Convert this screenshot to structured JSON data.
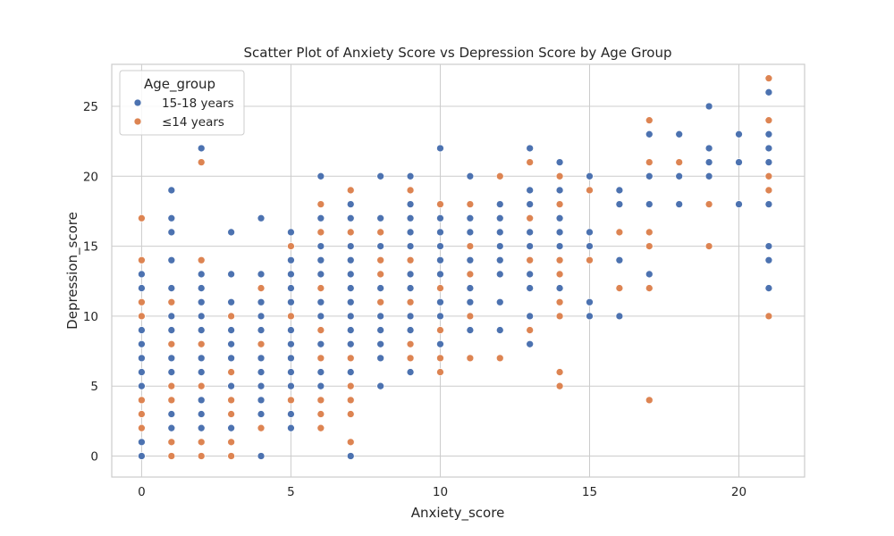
{
  "chart_data": {
    "type": "scatter",
    "title": "Scatter Plot of Anxiety Score vs Depression Score by Age Group",
    "xlabel": "Anxiety_score",
    "ylabel": "Depression_score",
    "xlim": [
      -1,
      22.2
    ],
    "ylim": [
      -1.5,
      28
    ],
    "xticks": [
      0,
      5,
      10,
      15,
      20
    ],
    "yticks": [
      0,
      5,
      10,
      15,
      20,
      25
    ],
    "grid": true,
    "legend": {
      "title": "Age_group",
      "position": "top-left"
    },
    "series": [
      {
        "name": "15-18 years",
        "color": "#4c72b0",
        "points": [
          [
            0,
            0
          ],
          [
            0,
            1
          ],
          [
            0,
            5
          ],
          [
            0,
            6
          ],
          [
            0,
            7
          ],
          [
            0,
            8
          ],
          [
            0,
            9
          ],
          [
            0,
            12
          ],
          [
            0,
            13
          ],
          [
            1,
            2
          ],
          [
            1,
            3
          ],
          [
            1,
            4
          ],
          [
            1,
            5
          ],
          [
            1,
            6
          ],
          [
            1,
            7
          ],
          [
            1,
            9
          ],
          [
            1,
            10
          ],
          [
            1,
            12
          ],
          [
            1,
            14
          ],
          [
            1,
            16
          ],
          [
            1,
            17
          ],
          [
            1,
            19
          ],
          [
            2,
            2
          ],
          [
            2,
            3
          ],
          [
            2,
            4
          ],
          [
            2,
            6
          ],
          [
            2,
            7
          ],
          [
            2,
            9
          ],
          [
            2,
            10
          ],
          [
            2,
            11
          ],
          [
            2,
            12
          ],
          [
            2,
            13
          ],
          [
            2,
            22
          ],
          [
            3,
            2
          ],
          [
            3,
            5
          ],
          [
            3,
            7
          ],
          [
            3,
            8
          ],
          [
            3,
            9
          ],
          [
            3,
            11
          ],
          [
            3,
            13
          ],
          [
            3,
            16
          ],
          [
            4,
            0
          ],
          [
            4,
            3
          ],
          [
            4,
            4
          ],
          [
            4,
            5
          ],
          [
            4,
            6
          ],
          [
            4,
            7
          ],
          [
            4,
            9
          ],
          [
            4,
            10
          ],
          [
            4,
            11
          ],
          [
            4,
            13
          ],
          [
            4,
            17
          ],
          [
            5,
            2
          ],
          [
            5,
            3
          ],
          [
            5,
            5
          ],
          [
            5,
            6
          ],
          [
            5,
            7
          ],
          [
            5,
            8
          ],
          [
            5,
            9
          ],
          [
            5,
            11
          ],
          [
            5,
            12
          ],
          [
            5,
            13
          ],
          [
            5,
            14
          ],
          [
            5,
            16
          ],
          [
            6,
            5
          ],
          [
            6,
            6
          ],
          [
            6,
            8
          ],
          [
            6,
            10
          ],
          [
            6,
            11
          ],
          [
            6,
            13
          ],
          [
            6,
            14
          ],
          [
            6,
            15
          ],
          [
            6,
            17
          ],
          [
            6,
            20
          ],
          [
            7,
            0
          ],
          [
            7,
            6
          ],
          [
            7,
            8
          ],
          [
            7,
            9
          ],
          [
            7,
            10
          ],
          [
            7,
            11
          ],
          [
            7,
            12
          ],
          [
            7,
            13
          ],
          [
            7,
            14
          ],
          [
            7,
            15
          ],
          [
            7,
            17
          ],
          [
            7,
            18
          ],
          [
            8,
            5
          ],
          [
            8,
            7
          ],
          [
            8,
            8
          ],
          [
            8,
            9
          ],
          [
            8,
            10
          ],
          [
            8,
            12
          ],
          [
            8,
            15
          ],
          [
            8,
            16
          ],
          [
            8,
            17
          ],
          [
            8,
            20
          ],
          [
            9,
            6
          ],
          [
            9,
            9
          ],
          [
            9,
            10
          ],
          [
            9,
            12
          ],
          [
            9,
            13
          ],
          [
            9,
            15
          ],
          [
            9,
            16
          ],
          [
            9,
            17
          ],
          [
            9,
            18
          ],
          [
            9,
            20
          ],
          [
            10,
            8
          ],
          [
            10,
            10
          ],
          [
            10,
            11
          ],
          [
            10,
            13
          ],
          [
            10,
            14
          ],
          [
            10,
            15
          ],
          [
            10,
            16
          ],
          [
            10,
            17
          ],
          [
            10,
            22
          ],
          [
            11,
            9
          ],
          [
            11,
            11
          ],
          [
            11,
            12
          ],
          [
            11,
            14
          ],
          [
            11,
            16
          ],
          [
            11,
            17
          ],
          [
            11,
            20
          ],
          [
            12,
            9
          ],
          [
            12,
            11
          ],
          [
            12,
            13
          ],
          [
            12,
            14
          ],
          [
            12,
            15
          ],
          [
            12,
            16
          ],
          [
            12,
            17
          ],
          [
            12,
            18
          ],
          [
            13,
            8
          ],
          [
            13,
            10
          ],
          [
            13,
            12
          ],
          [
            13,
            13
          ],
          [
            13,
            15
          ],
          [
            13,
            16
          ],
          [
            13,
            18
          ],
          [
            13,
            19
          ],
          [
            13,
            22
          ],
          [
            14,
            12
          ],
          [
            14,
            15
          ],
          [
            14,
            16
          ],
          [
            14,
            17
          ],
          [
            14,
            19
          ],
          [
            14,
            21
          ],
          [
            15,
            10
          ],
          [
            15,
            11
          ],
          [
            15,
            15
          ],
          [
            15,
            16
          ],
          [
            15,
            20
          ],
          [
            16,
            10
          ],
          [
            16,
            14
          ],
          [
            16,
            18
          ],
          [
            16,
            19
          ],
          [
            17,
            13
          ],
          [
            17,
            18
          ],
          [
            17,
            20
          ],
          [
            17,
            23
          ],
          [
            18,
            18
          ],
          [
            18,
            20
          ],
          [
            18,
            23
          ],
          [
            19,
            20
          ],
          [
            19,
            21
          ],
          [
            19,
            22
          ],
          [
            19,
            25
          ],
          [
            20,
            18
          ],
          [
            20,
            21
          ],
          [
            20,
            23
          ],
          [
            21,
            12
          ],
          [
            21,
            14
          ],
          [
            21,
            15
          ],
          [
            21,
            18
          ],
          [
            21,
            21
          ],
          [
            21,
            22
          ],
          [
            21,
            23
          ],
          [
            21,
            26
          ]
        ]
      },
      {
        "name": "≤14 years",
        "color": "#dd8452",
        "points": [
          [
            0,
            2
          ],
          [
            0,
            3
          ],
          [
            0,
            4
          ],
          [
            0,
            10
          ],
          [
            0,
            11
          ],
          [
            0,
            14
          ],
          [
            0,
            17
          ],
          [
            1,
            0
          ],
          [
            1,
            1
          ],
          [
            1,
            4
          ],
          [
            1,
            5
          ],
          [
            1,
            8
          ],
          [
            1,
            11
          ],
          [
            2,
            0
          ],
          [
            2,
            1
          ],
          [
            2,
            5
          ],
          [
            2,
            8
          ],
          [
            2,
            14
          ],
          [
            2,
            21
          ],
          [
            3,
            0
          ],
          [
            3,
            1
          ],
          [
            3,
            3
          ],
          [
            3,
            4
          ],
          [
            3,
            6
          ],
          [
            3,
            10
          ],
          [
            4,
            2
          ],
          [
            4,
            8
          ],
          [
            4,
            12
          ],
          [
            5,
            4
          ],
          [
            5,
            10
          ],
          [
            5,
            15
          ],
          [
            6,
            2
          ],
          [
            6,
            3
          ],
          [
            6,
            4
          ],
          [
            6,
            7
          ],
          [
            6,
            9
          ],
          [
            6,
            12
          ],
          [
            6,
            16
          ],
          [
            6,
            18
          ],
          [
            7,
            1
          ],
          [
            7,
            3
          ],
          [
            7,
            4
          ],
          [
            7,
            5
          ],
          [
            7,
            7
          ],
          [
            7,
            16
          ],
          [
            7,
            19
          ],
          [
            8,
            11
          ],
          [
            8,
            13
          ],
          [
            8,
            14
          ],
          [
            8,
            16
          ],
          [
            9,
            7
          ],
          [
            9,
            8
          ],
          [
            9,
            11
          ],
          [
            9,
            14
          ],
          [
            9,
            19
          ],
          [
            10,
            6
          ],
          [
            10,
            7
          ],
          [
            10,
            9
          ],
          [
            10,
            12
          ],
          [
            10,
            18
          ],
          [
            11,
            7
          ],
          [
            11,
            10
          ],
          [
            11,
            13
          ],
          [
            11,
            15
          ],
          [
            11,
            18
          ],
          [
            12,
            7
          ],
          [
            12,
            20
          ],
          [
            13,
            9
          ],
          [
            13,
            14
          ],
          [
            13,
            17
          ],
          [
            13,
            21
          ],
          [
            14,
            5
          ],
          [
            14,
            6
          ],
          [
            14,
            10
          ],
          [
            14,
            11
          ],
          [
            14,
            13
          ],
          [
            14,
            14
          ],
          [
            14,
            18
          ],
          [
            14,
            20
          ],
          [
            15,
            14
          ],
          [
            15,
            19
          ],
          [
            16,
            12
          ],
          [
            16,
            16
          ],
          [
            17,
            4
          ],
          [
            17,
            12
          ],
          [
            17,
            15
          ],
          [
            17,
            16
          ],
          [
            17,
            21
          ],
          [
            17,
            24
          ],
          [
            18,
            21
          ],
          [
            19,
            15
          ],
          [
            19,
            18
          ],
          [
            21,
            10
          ],
          [
            21,
            19
          ],
          [
            21,
            20
          ],
          [
            21,
            24
          ],
          [
            21,
            27
          ]
        ]
      }
    ]
  }
}
